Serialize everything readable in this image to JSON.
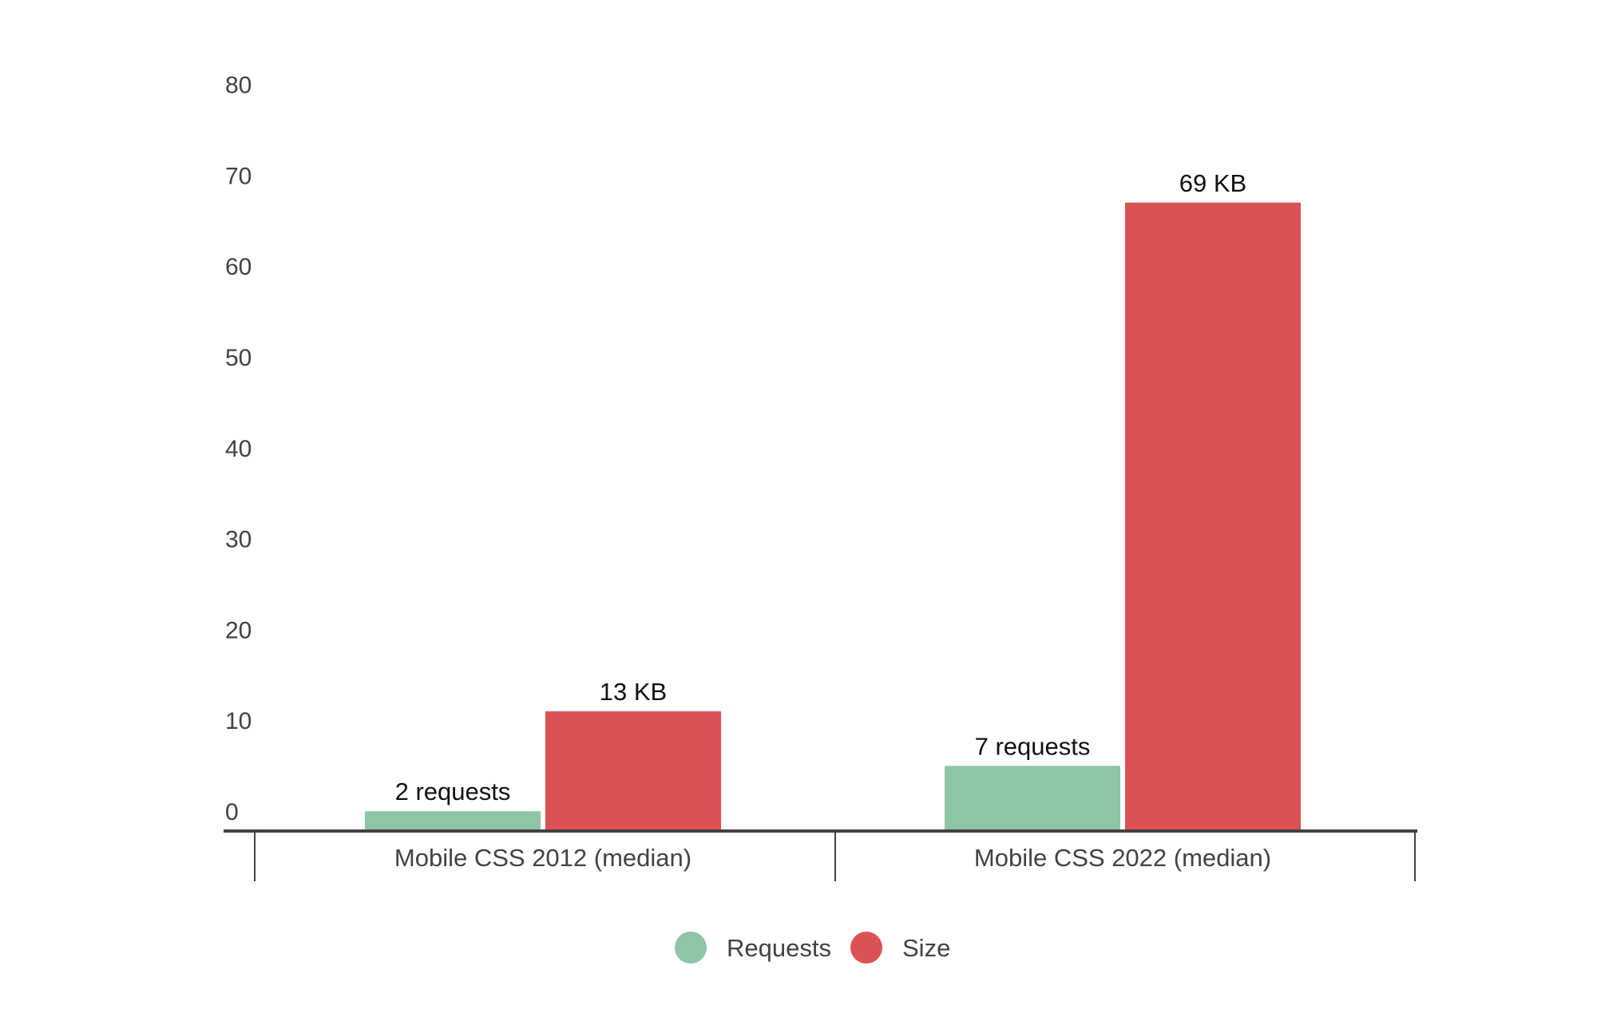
{
  "chart_data": {
    "type": "bar",
    "title": "",
    "xlabel": "",
    "ylabel": "",
    "categories": [
      "Mobile CSS 2012 (median)",
      "Mobile CSS 2022 (median)"
    ],
    "series": [
      {
        "name": "Requests",
        "color": "#8ec5a5",
        "values": [
          2,
          7
        ],
        "labels": [
          "2 requests",
          "7 requests"
        ]
      },
      {
        "name": "Size",
        "color": "#db5254",
        "values": [
          13,
          69
        ],
        "labels": [
          "13 KB",
          "69 KB"
        ]
      }
    ],
    "yticks": [
      "0",
      "10",
      "20",
      "30",
      "40",
      "50",
      "60",
      "70",
      "80"
    ],
    "ylim": [
      0,
      80
    ],
    "grid": false,
    "legend_position": "bottom-center"
  }
}
